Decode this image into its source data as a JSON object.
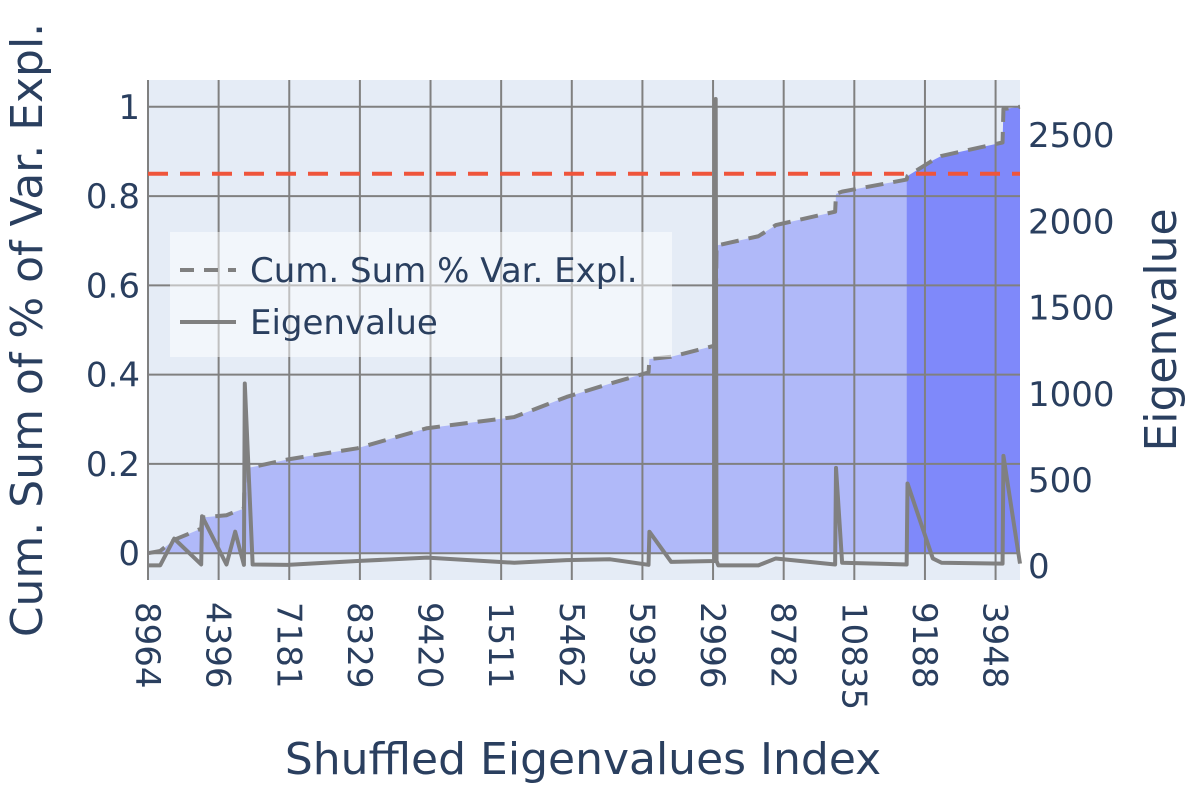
{
  "chart_data": {
    "type": "line",
    "xlabel": "Shuffled Eigenvalues Index",
    "ylabel_left": "Cum. Sum of %  of Var. Expl.",
    "ylabel_right": "Eigenvalue",
    "x_tick_labels": [
      "8964",
      "4396",
      "7181",
      "8329",
      "9420",
      "1511",
      "5462",
      "5939",
      "2996",
      "8782",
      "10835",
      "9188",
      "3948"
    ],
    "x_range": [
      0,
      1000
    ],
    "x_tick_positions": [
      0,
      81,
      162,
      243,
      324,
      405,
      486,
      567,
      648,
      729,
      810,
      891,
      972
    ],
    "y_left_range": [
      -0.06,
      1.06
    ],
    "y_left_ticks": [
      0,
      0.2,
      0.4,
      0.6,
      0.8,
      1
    ],
    "y_left_tick_labels": [
      "0",
      "0.2",
      "0.4",
      "0.6",
      "0.8",
      "1"
    ],
    "y_right_range": [
      -80,
      2820
    ],
    "y_right_ticks": [
      0,
      500,
      1000,
      1500,
      2000,
      2500
    ],
    "y_right_tick_labels": [
      "0",
      "500",
      "1000",
      "1500",
      "2000",
      "2500"
    ],
    "threshold": {
      "value": 0.85,
      "color": "#ef553b",
      "style": "dashed"
    },
    "grid": true,
    "legend_position": "left",
    "series": [
      {
        "name": "Cum. Sum % Var. Expl.",
        "axis": "left",
        "style": "dashed",
        "color": "#808080",
        "x": [
          0,
          14,
          30,
          61,
          62,
          90,
          100,
          110,
          111,
          120,
          160,
          240,
          320,
          420,
          480,
          530,
          574,
          575,
          600,
          650,
          651,
          652,
          654,
          700,
          720,
          788,
          789,
          796,
          870,
          871,
          900,
          910,
          980,
          981,
          1000
        ],
        "y": [
          0,
          0.005,
          0.03,
          0.055,
          0.08,
          0.085,
          0.093,
          0.1,
          0.19,
          0.193,
          0.21,
          0.235,
          0.28,
          0.305,
          0.35,
          0.38,
          0.405,
          0.435,
          0.44,
          0.465,
          0.53,
          0.69,
          0.69,
          0.71,
          0.735,
          0.765,
          0.805,
          0.81,
          0.837,
          0.845,
          0.88,
          0.89,
          0.92,
          0.995,
          1
        ]
      },
      {
        "name": "Eigenvalue",
        "axis": "right",
        "style": "solid",
        "color": "#808080",
        "x": [
          0,
          14,
          30,
          61,
          62,
          90,
          100,
          110,
          111,
          120,
          160,
          240,
          320,
          420,
          480,
          530,
          574,
          575,
          600,
          650,
          651,
          652,
          654,
          700,
          720,
          788,
          789,
          796,
          870,
          871,
          900,
          910,
          980,
          981,
          1000
        ],
        "y": [
          5,
          5,
          160,
          10,
          290,
          10,
          200,
          8,
          1060,
          10,
          8,
          30,
          50,
          20,
          35,
          40,
          8,
          200,
          25,
          30,
          2710,
          30,
          5,
          5,
          45,
          10,
          570,
          20,
          10,
          480,
          45,
          20,
          15,
          640,
          15
        ]
      }
    ],
    "shaded_regions": [
      {
        "x_start": 14,
        "x_end": 870,
        "color": "#b0b9f9"
      },
      {
        "x_start": 870,
        "x_end": 1000,
        "color": "#7f89fa"
      }
    ]
  }
}
